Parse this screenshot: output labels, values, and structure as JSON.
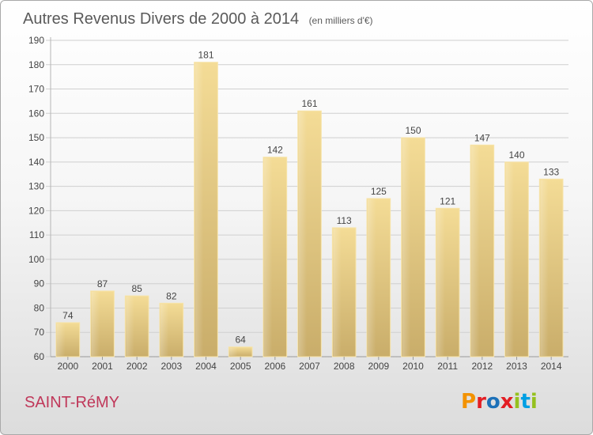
{
  "chart_data": {
    "type": "bar",
    "title": "Autres Revenus Divers de 2000 à 2014",
    "unit": "(en milliers d'€)",
    "categories": [
      "2000",
      "2001",
      "2002",
      "2003",
      "2004",
      "2005",
      "2006",
      "2007",
      "2008",
      "2009",
      "2010",
      "2011",
      "2012",
      "2013",
      "2014"
    ],
    "values": [
      74,
      87,
      85,
      82,
      181,
      64,
      142,
      161,
      113,
      125,
      150,
      121,
      147,
      140,
      133
    ],
    "ylim": [
      60,
      190
    ],
    "yticks": [
      60,
      70,
      80,
      90,
      100,
      110,
      120,
      130,
      140,
      150,
      160,
      170,
      180,
      190
    ],
    "xlabel": "",
    "ylabel": "",
    "grid": true,
    "bar_color": "#e6c97e"
  },
  "footer": {
    "commune": "SAINT-RéMY",
    "brand": "Proxiti",
    "brand_colors": [
      "#f39200",
      "#e31e24",
      "#1d71b8",
      "#e31e24",
      "#95c11f",
      "#009fe3",
      "#95c11f"
    ]
  }
}
